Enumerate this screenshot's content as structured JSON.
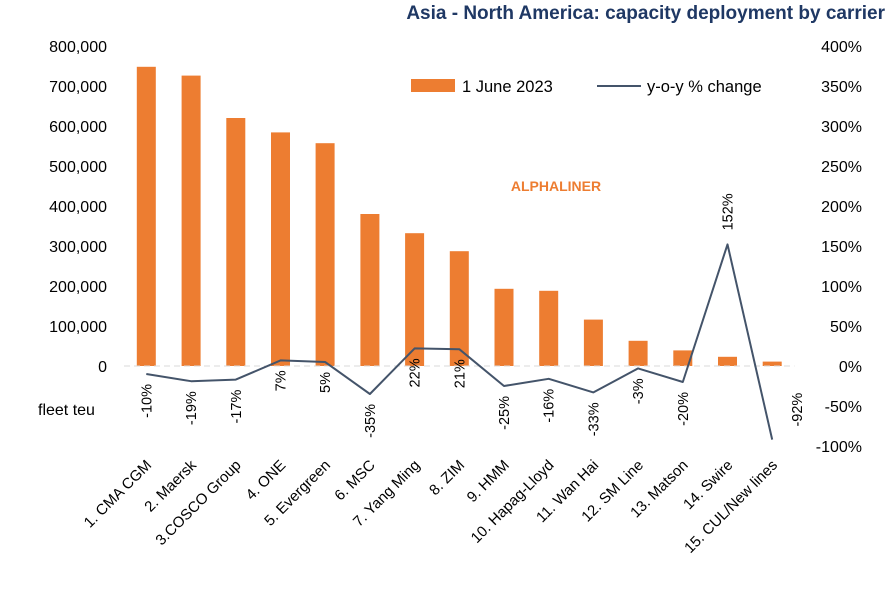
{
  "chart_data": {
    "type": "bar",
    "title": "Asia - North America: capacity deployment by carrier",
    "ylabel": "fleet teu",
    "xlabel": "",
    "categories": [
      "1. CMA CGM",
      "2. Maersk",
      "3.COSCO Group",
      "4. ONE",
      "5. Evergreen",
      "6. MSC",
      "7. Yang Ming",
      "8. ZIM",
      "9. HMM",
      "10. Hapag-Lloyd",
      "11. Wan Hai",
      "12. SM Line",
      "13. Matson",
      "14. Swire",
      "15. CUL/New lines"
    ],
    "ylim": [
      0,
      800000
    ],
    "y_ticks": [
      "0",
      "100,000",
      "200,000",
      "300,000",
      "400,000",
      "500,000",
      "600,000",
      "700,000",
      "800,000"
    ],
    "y2lim": [
      -100,
      400
    ],
    "y2_ticks": [
      "-100%",
      "-50%",
      "0%",
      "50%",
      "100%",
      "150%",
      "200%",
      "250%",
      "300%",
      "350%",
      "400%"
    ],
    "series": [
      {
        "name": "1 June 2023",
        "type": "bar",
        "axis": "left",
        "color": "#ED7D31",
        "values": [
          748000,
          726000,
          620000,
          584000,
          557000,
          380000,
          332000,
          287000,
          193000,
          188000,
          116000,
          63000,
          39000,
          23000,
          11000
        ]
      },
      {
        "name": "y-o-y % change",
        "type": "line",
        "axis": "right",
        "color": "#44546A",
        "values": [
          -10,
          -19,
          -17,
          7,
          5,
          -35,
          22,
          21,
          -25,
          -16,
          -33,
          -3,
          -20,
          152,
          -92
        ],
        "labels": [
          "-10%",
          "-19%",
          "-17%",
          "7%",
          "5%",
          "-35%",
          "22%",
          "21%",
          "-25%",
          "-16%",
          "-33%",
          "-3%",
          "-20%",
          "152%",
          "-92%"
        ]
      }
    ],
    "legend_position": "top-right",
    "grid": false,
    "watermark": "ALPHALINER",
    "watermark_color": "#ED7D31"
  }
}
